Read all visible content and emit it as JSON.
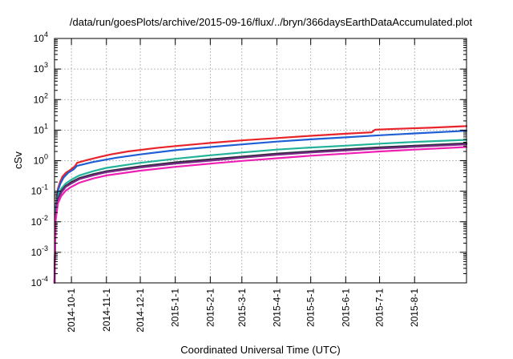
{
  "chart_data": {
    "type": "line",
    "title": "/data/run/goesPlots/archive/2015-09-16/flux/../bryn/366daysEarthDataAccumulated.plot",
    "xlabel": "Coordinated Universal Time (UTC)",
    "ylabel": "cSv",
    "yscale": "log",
    "ylim": [
      0.0001,
      10000
    ],
    "xlim": [
      "2014-09-16",
      "2015-09-16"
    ],
    "grid": true,
    "x_ticks": [
      "2014-10-1",
      "2014-11-1",
      "2014-12-1",
      "2015-1-1",
      "2015-2-1",
      "2015-3-1",
      "2015-4-1",
      "2015-5-1",
      "2015-6-1",
      "2015-7-1",
      "2015-8-1"
    ],
    "y_ticks": [
      {
        "value": 0.0001,
        "base": "10",
        "exp": "-4"
      },
      {
        "value": 0.001,
        "base": "10",
        "exp": "-3"
      },
      {
        "value": 0.01,
        "base": "10",
        "exp": "-2"
      },
      {
        "value": 0.1,
        "base": "10",
        "exp": "-1"
      },
      {
        "value": 1,
        "base": "10",
        "exp": "0"
      },
      {
        "value": 10,
        "base": "10",
        "exp": "1"
      },
      {
        "value": 100,
        "base": "10",
        "exp": "2"
      },
      {
        "value": 1000,
        "base": "10",
        "exp": "3"
      },
      {
        "value": 10000,
        "base": "10",
        "exp": "4"
      }
    ],
    "series": [
      {
        "color": "#e8232a",
        "points": [
          [
            "2014-09-16",
            0.0001
          ],
          [
            "2014-09-17",
            0.03
          ],
          [
            "2014-09-19",
            0.12
          ],
          [
            "2014-09-21",
            0.2
          ],
          [
            "2014-09-23",
            0.3
          ],
          [
            "2014-09-26",
            0.4
          ],
          [
            "2014-09-30",
            0.5
          ],
          [
            "2014-10-04",
            0.65
          ],
          [
            "2014-10-06",
            0.85
          ],
          [
            "2014-10-15",
            1.05
          ],
          [
            "2014-10-25",
            1.3
          ],
          [
            "2014-11-05",
            1.6
          ],
          [
            "2014-11-20",
            2.0
          ],
          [
            "2014-12-15",
            2.6
          ],
          [
            "2015-01-01",
            3.0
          ],
          [
            "2015-02-01",
            3.8
          ],
          [
            "2015-03-01",
            4.6
          ],
          [
            "2015-04-01",
            5.5
          ],
          [
            "2015-05-01",
            6.5
          ],
          [
            "2015-06-01",
            7.6
          ],
          [
            "2015-06-24",
            8.5
          ],
          [
            "2015-06-27",
            10.3
          ],
          [
            "2015-07-15",
            11.0
          ],
          [
            "2015-08-15",
            12.0
          ],
          [
            "2015-09-16",
            13.5
          ]
        ]
      },
      {
        "color": "#1f5fd6",
        "points": [
          [
            "2014-09-16",
            0.0001
          ],
          [
            "2014-09-17",
            0.025
          ],
          [
            "2014-09-19",
            0.1
          ],
          [
            "2014-09-21",
            0.17
          ],
          [
            "2014-09-24",
            0.28
          ],
          [
            "2014-09-28",
            0.4
          ],
          [
            "2014-10-03",
            0.52
          ],
          [
            "2014-10-06",
            0.68
          ],
          [
            "2014-10-20",
            0.9
          ],
          [
            "2014-11-10",
            1.25
          ],
          [
            "2014-12-01",
            1.6
          ],
          [
            "2015-01-01",
            2.2
          ],
          [
            "2015-02-01",
            2.8
          ],
          [
            "2015-03-01",
            3.4
          ],
          [
            "2015-04-01",
            4.2
          ],
          [
            "2015-05-01",
            5.0
          ],
          [
            "2015-06-01",
            5.8
          ],
          [
            "2015-07-01",
            6.8
          ],
          [
            "2015-08-01",
            7.8
          ],
          [
            "2015-09-16",
            9.5
          ]
        ]
      },
      {
        "color": "#22b39a",
        "points": [
          [
            "2014-09-16",
            0.0001
          ],
          [
            "2014-09-17",
            0.02
          ],
          [
            "2014-09-19",
            0.07
          ],
          [
            "2014-09-22",
            0.12
          ],
          [
            "2014-09-26",
            0.18
          ],
          [
            "2014-10-01",
            0.24
          ],
          [
            "2014-10-08",
            0.33
          ],
          [
            "2014-10-20",
            0.45
          ],
          [
            "2014-11-01",
            0.58
          ],
          [
            "2014-12-01",
            0.85
          ],
          [
            "2015-01-01",
            1.15
          ],
          [
            "2015-02-01",
            1.5
          ],
          [
            "2015-03-01",
            1.85
          ],
          [
            "2015-04-01",
            2.3
          ],
          [
            "2015-05-01",
            2.7
          ],
          [
            "2015-06-01",
            3.1
          ],
          [
            "2015-07-01",
            3.6
          ],
          [
            "2015-08-01",
            4.1
          ],
          [
            "2015-09-16",
            4.8
          ]
        ]
      },
      {
        "color": "#2a2a3a",
        "points": [
          [
            "2014-09-16",
            0.0001
          ],
          [
            "2014-09-17",
            0.016
          ],
          [
            "2014-09-19",
            0.055
          ],
          [
            "2014-09-22",
            0.1
          ],
          [
            "2014-09-26",
            0.15
          ],
          [
            "2014-10-01",
            0.2
          ],
          [
            "2014-10-08",
            0.27
          ],
          [
            "2014-10-20",
            0.36
          ],
          [
            "2014-11-01",
            0.45
          ],
          [
            "2014-12-01",
            0.65
          ],
          [
            "2015-01-01",
            0.88
          ],
          [
            "2015-02-01",
            1.1
          ],
          [
            "2015-03-01",
            1.35
          ],
          [
            "2015-04-01",
            1.7
          ],
          [
            "2015-05-01",
            2.0
          ],
          [
            "2015-06-01",
            2.35
          ],
          [
            "2015-07-01",
            2.75
          ],
          [
            "2015-08-01",
            3.1
          ],
          [
            "2015-09-16",
            3.7
          ]
        ]
      },
      {
        "color": "#7a2a86",
        "points": [
          [
            "2014-09-16",
            0.0001
          ],
          [
            "2014-09-17",
            0.014
          ],
          [
            "2014-09-19",
            0.05
          ],
          [
            "2014-09-22",
            0.09
          ],
          [
            "2014-09-26",
            0.14
          ],
          [
            "2014-10-01",
            0.18
          ],
          [
            "2014-10-08",
            0.25
          ],
          [
            "2014-10-20",
            0.33
          ],
          [
            "2014-11-01",
            0.42
          ],
          [
            "2014-12-01",
            0.6
          ],
          [
            "2015-01-01",
            0.8
          ],
          [
            "2015-02-01",
            1.0
          ],
          [
            "2015-03-01",
            1.25
          ],
          [
            "2015-04-01",
            1.55
          ],
          [
            "2015-05-01",
            1.85
          ],
          [
            "2015-06-01",
            2.15
          ],
          [
            "2015-07-01",
            2.5
          ],
          [
            "2015-08-01",
            2.85
          ],
          [
            "2015-09-16",
            3.4
          ]
        ]
      },
      {
        "color": "#f01fb4",
        "points": [
          [
            "2014-09-16",
            0.0001
          ],
          [
            "2014-09-17",
            0.011
          ],
          [
            "2014-09-19",
            0.04
          ],
          [
            "2014-09-22",
            0.07
          ],
          [
            "2014-09-26",
            0.105
          ],
          [
            "2014-10-01",
            0.14
          ],
          [
            "2014-10-08",
            0.19
          ],
          [
            "2014-10-20",
            0.26
          ],
          [
            "2014-11-01",
            0.33
          ],
          [
            "2014-12-01",
            0.47
          ],
          [
            "2015-01-01",
            0.63
          ],
          [
            "2015-02-01",
            0.8
          ],
          [
            "2015-03-01",
            0.98
          ],
          [
            "2015-04-01",
            1.2
          ],
          [
            "2015-05-01",
            1.45
          ],
          [
            "2015-06-01",
            1.7
          ],
          [
            "2015-07-01",
            2.0
          ],
          [
            "2015-08-01",
            2.3
          ],
          [
            "2015-09-16",
            2.8
          ]
        ]
      }
    ]
  }
}
